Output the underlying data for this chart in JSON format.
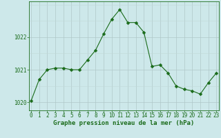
{
  "x": [
    0,
    1,
    2,
    3,
    4,
    5,
    6,
    7,
    8,
    9,
    10,
    11,
    12,
    13,
    14,
    15,
    16,
    17,
    18,
    19,
    20,
    21,
    22,
    23
  ],
  "y": [
    1020.05,
    1020.7,
    1021.0,
    1021.05,
    1021.05,
    1021.0,
    1021.0,
    1021.3,
    1021.6,
    1022.1,
    1022.55,
    1022.85,
    1022.45,
    1022.45,
    1022.15,
    1021.1,
    1021.15,
    1020.9,
    1020.5,
    1020.4,
    1020.35,
    1020.25,
    1020.6,
    1020.9
  ],
  "line_color": "#1a6b1a",
  "marker": "D",
  "marker_size": 2.5,
  "bg_color": "#cde8ea",
  "grid_color_major": "#afc8c8",
  "grid_color_minor": "#c0d8d8",
  "xlabel": "Graphe pression niveau de la mer (hPa)",
  "xlabel_color": "#1a6b1a",
  "xlabel_fontsize": 6.5,
  "tick_color": "#1a6b1a",
  "tick_fontsize": 5.5,
  "ylim": [
    1019.75,
    1023.1
  ],
  "yticks": [
    1020,
    1021,
    1022
  ],
  "xlim": [
    -0.3,
    23.3
  ],
  "xticks": [
    0,
    1,
    2,
    3,
    4,
    5,
    6,
    7,
    8,
    9,
    10,
    11,
    12,
    13,
    14,
    15,
    16,
    17,
    18,
    19,
    20,
    21,
    22,
    23
  ]
}
